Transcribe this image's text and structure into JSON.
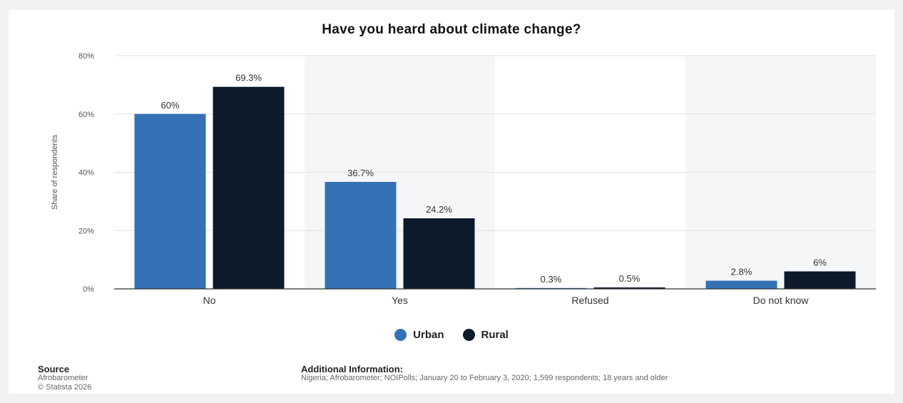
{
  "colors": {
    "urban": "#3571b5",
    "rural": "#0c1a2b",
    "band": "#f4f6f8",
    "grid": "#e2e2e2"
  },
  "chart_data": {
    "type": "bar",
    "title": "Have you heard about climate change?",
    "ylabel": "Share of respondents",
    "ylim": [
      0,
      80
    ],
    "yticks": [
      "0%",
      "20%",
      "40%",
      "60%",
      "80%"
    ],
    "categories": [
      "No",
      "Yes",
      "Refused",
      "Do not know"
    ],
    "series": [
      {
        "name": "Urban",
        "values": [
          60,
          36.7,
          0.3,
          2.8
        ],
        "labels": [
          "60%",
          "36.7%",
          "0.3%",
          "2.8%"
        ]
      },
      {
        "name": "Rural",
        "values": [
          69.3,
          24.2,
          0.5,
          6
        ],
        "labels": [
          "69.3%",
          "24.2%",
          "0.5%",
          "6%"
        ]
      }
    ],
    "legend_position": "bottom-center",
    "grid": true
  },
  "footer": {
    "source_head": "Source",
    "source_lines": [
      "Afrobarometer",
      "© Statista 2026"
    ],
    "info_head": "Additional Information:",
    "info_text": "Nigeria; Afrobarometer; NOIPolls; January 20 to February 3, 2020; 1,599 respondents; 18 years and older"
  }
}
